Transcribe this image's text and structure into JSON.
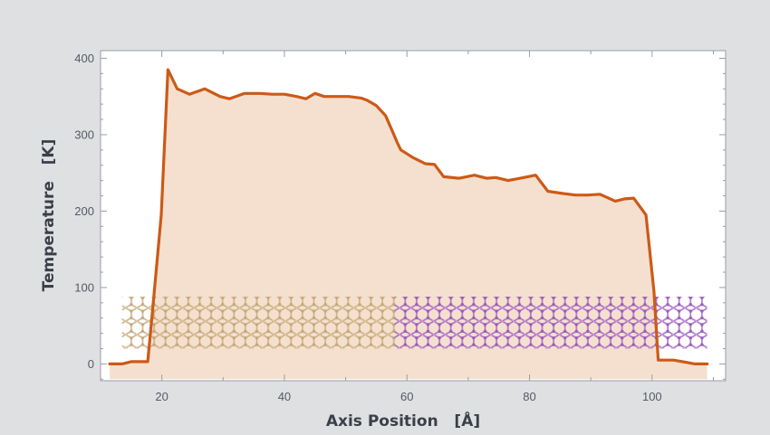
{
  "chart_data": {
    "type": "area",
    "title": "",
    "xlabel": "Axis Position   [Å]",
    "ylabel": "Temperature   [K]",
    "xlim": [
      10,
      112
    ],
    "ylim": [
      -22,
      410
    ],
    "x_ticks": [
      "20",
      "40",
      "60",
      "80",
      "100"
    ],
    "y_ticks": [
      "0",
      "100",
      "200",
      "300",
      "400"
    ],
    "grid": false,
    "legend": "none",
    "colors": {
      "line": "#cc5a17",
      "fill": "#f5e0cf",
      "plot_background": "#ffffff",
      "page_background": "#dfe0e2",
      "frame": "#9a9ea6",
      "lattice_left": "#c8ad7e",
      "lattice_right": "#a565c4"
    },
    "series": [
      {
        "x": [
          11.5,
          13.5,
          15,
          17,
          17.7,
          18.6,
          19.9,
          21,
          22.5,
          24.5,
          27,
          29.5,
          31,
          33.5,
          36,
          38,
          40,
          42,
          43.5,
          45,
          46.5,
          48.5,
          50.5,
          52.5,
          53.5,
          55,
          56.5,
          57.6,
          58.4,
          59,
          61,
          63,
          64.5,
          66,
          68.5,
          71,
          73,
          74.5,
          76.5,
          78.5,
          81,
          83,
          85.5,
          87.5,
          89.5,
          91.5,
          94,
          95.5,
          97,
          99,
          100.3,
          101,
          103.5,
          105,
          107,
          109
        ],
        "values": [
          0,
          0,
          3,
          3,
          3,
          80,
          195,
          385,
          360,
          353,
          360,
          350,
          347,
          354,
          354,
          353,
          353,
          350,
          347,
          354,
          350,
          350,
          350,
          348,
          345,
          338,
          325,
          305,
          290,
          280,
          270,
          262,
          261,
          245,
          243,
          247,
          243,
          244,
          240,
          243,
          247,
          226,
          223,
          221,
          221,
          222,
          213,
          216,
          217,
          195,
          95,
          5,
          5,
          3,
          0,
          0
        ]
      }
    ]
  }
}
